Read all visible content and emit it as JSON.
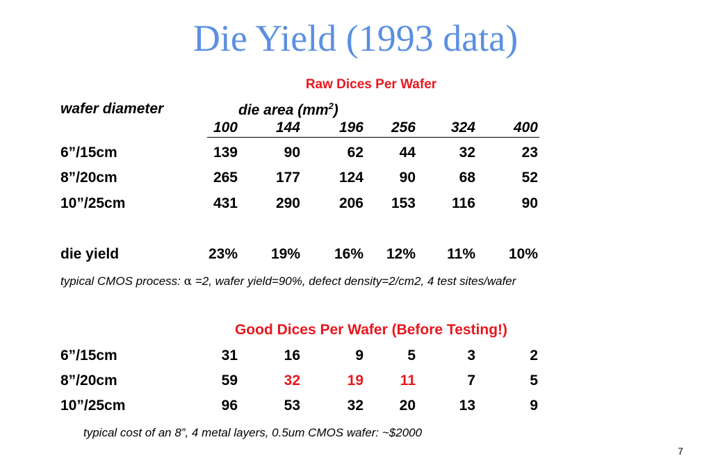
{
  "title": "Die Yield (1993 data)",
  "raw_section": {
    "heading": "Raw Dices Per Wafer",
    "col_label_wafer": "wafer diameter",
    "col_label_area": "die area (mm",
    "col_label_area_sup": "2",
    "col_label_area_close": ")",
    "die_areas": [
      "100",
      "144",
      "196",
      "256",
      "324",
      "400"
    ],
    "rows": [
      {
        "label": "6”/15cm",
        "values": [
          "139",
          "90",
          "62",
          "44",
          "32",
          "23"
        ]
      },
      {
        "label": "8”/20cm",
        "values": [
          "265",
          "177",
          "124",
          "90",
          "68",
          "52"
        ]
      },
      {
        "label": "10”/25cm",
        "values": [
          "431",
          "290",
          "206",
          "153",
          "116",
          "90"
        ]
      }
    ],
    "die_yield": {
      "label": "die yield",
      "values": [
        "23%",
        "19%",
        "16%",
        "12%",
        "11%",
        "10%"
      ]
    },
    "process_note_prefix": "typical CMOS process: ",
    "process_note_symbol": "α",
    "process_note_suffix": " =2, wafer yield=90%, defect density=2/cm2, 4 test sites/wafer"
  },
  "good_section": {
    "heading": "Good Dices Per Wafer (Before Testing!)",
    "rows": [
      {
        "label": "6”/15cm",
        "values": [
          "31",
          "16",
          "9",
          "5",
          "3",
          "2"
        ]
      },
      {
        "label": "8”/20cm",
        "values": [
          "59",
          "32",
          "19",
          "11",
          "7",
          "5"
        ]
      },
      {
        "label": "10”/25cm",
        "values": [
          "96",
          "53",
          "32",
          "20",
          "13",
          "9"
        ]
      }
    ],
    "highlight_color": "#e8171e",
    "highlighted_cells": {
      "row": 1,
      "columns": [
        1,
        2,
        3
      ]
    },
    "cost_note": "typical cost of an 8”, 4 metal layers, 0.5um CMOS wafer: ~$2000"
  },
  "page_number": "7",
  "colors": {
    "title": "#5b8fe0",
    "heading": "#e8171e",
    "text": "#000000"
  }
}
